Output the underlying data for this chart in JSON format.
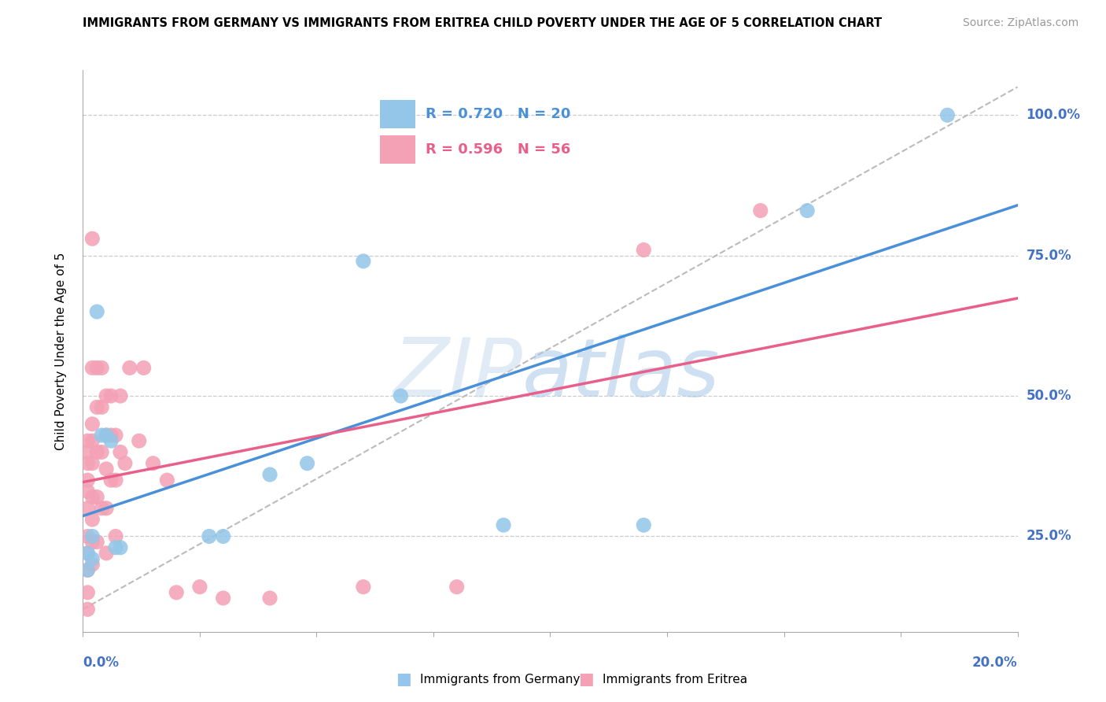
{
  "title": "IMMIGRANTS FROM GERMANY VS IMMIGRANTS FROM ERITREA CHILD POVERTY UNDER THE AGE OF 5 CORRELATION CHART",
  "source": "Source: ZipAtlas.com",
  "ylabel": "Child Poverty Under the Age of 5",
  "germany_color": "#93C6E8",
  "eritrea_color": "#F4A0B5",
  "germany_line_color": "#4A90D9",
  "eritrea_line_color": "#E8608A",
  "germany_label": "Immigrants from Germany",
  "eritrea_label": "Immigrants from Eritrea",
  "germany_R": "0.720",
  "germany_N": "20",
  "eritrea_R": "0.596",
  "eritrea_N": "56",
  "watermark": "ZIPatlas",
  "xlim": [
    0.0,
    0.2
  ],
  "ylim": [
    0.08,
    1.08
  ],
  "germany_x": [
    0.001,
    0.001,
    0.002,
    0.002,
    0.003,
    0.004,
    0.005,
    0.006,
    0.007,
    0.008,
    0.027,
    0.03,
    0.048,
    0.068,
    0.09,
    0.12,
    0.155,
    0.185,
    0.04,
    0.06
  ],
  "germany_y": [
    0.19,
    0.22,
    0.21,
    0.25,
    0.65,
    0.43,
    0.43,
    0.42,
    0.23,
    0.23,
    0.25,
    0.25,
    0.38,
    0.5,
    0.27,
    0.27,
    0.83,
    1.0,
    0.36,
    0.74
  ],
  "eritrea_x": [
    0.001,
    0.001,
    0.001,
    0.001,
    0.001,
    0.001,
    0.001,
    0.001,
    0.001,
    0.001,
    0.001,
    0.002,
    0.002,
    0.002,
    0.002,
    0.002,
    0.002,
    0.002,
    0.002,
    0.002,
    0.003,
    0.003,
    0.003,
    0.003,
    0.003,
    0.004,
    0.004,
    0.004,
    0.004,
    0.005,
    0.005,
    0.005,
    0.005,
    0.005,
    0.006,
    0.006,
    0.006,
    0.007,
    0.007,
    0.007,
    0.008,
    0.008,
    0.009,
    0.01,
    0.012,
    0.013,
    0.015,
    0.018,
    0.02,
    0.025,
    0.03,
    0.04,
    0.06,
    0.08,
    0.12,
    0.145
  ],
  "eritrea_y": [
    0.42,
    0.4,
    0.38,
    0.35,
    0.33,
    0.3,
    0.25,
    0.22,
    0.19,
    0.15,
    0.12,
    0.78,
    0.55,
    0.45,
    0.42,
    0.38,
    0.32,
    0.28,
    0.24,
    0.2,
    0.55,
    0.48,
    0.4,
    0.32,
    0.24,
    0.55,
    0.48,
    0.4,
    0.3,
    0.5,
    0.43,
    0.37,
    0.3,
    0.22,
    0.5,
    0.43,
    0.35,
    0.43,
    0.35,
    0.25,
    0.5,
    0.4,
    0.38,
    0.55,
    0.42,
    0.55,
    0.38,
    0.35,
    0.15,
    0.16,
    0.14,
    0.14,
    0.16,
    0.16,
    0.76,
    0.83
  ]
}
